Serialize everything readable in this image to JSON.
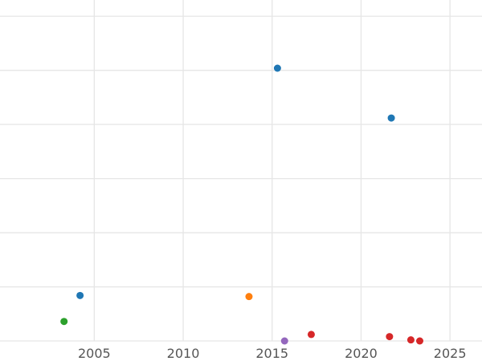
{
  "chart_data": {
    "type": "scatter",
    "title": "",
    "xlabel": "",
    "ylabel": "",
    "xlim": [
      1999.7,
      2026.8
    ],
    "ylim": [
      0,
      31.5
    ],
    "grid": true,
    "x_ticks": [
      2005,
      2010,
      2015,
      2020,
      2025
    ],
    "x_tick_labels": [
      "2005",
      "2010",
      "2015",
      "2020",
      "2025"
    ],
    "y_gridlines": [
      0,
      5,
      10,
      15,
      20,
      25,
      30
    ],
    "series": [
      {
        "color": "#1f77b4",
        "points": [
          {
            "x": 2004.2,
            "y": 4.2
          },
          {
            "x": 2015.3,
            "y": 25.2
          },
          {
            "x": 2021.7,
            "y": 20.6
          }
        ]
      },
      {
        "color": "#ff7f0e",
        "points": [
          {
            "x": 2013.7,
            "y": 4.1
          }
        ]
      },
      {
        "color": "#2ca02c",
        "points": [
          {
            "x": 2003.3,
            "y": 1.8
          }
        ]
      },
      {
        "color": "#d62728",
        "points": [
          {
            "x": 2017.2,
            "y": 0.6
          },
          {
            "x": 2021.6,
            "y": 0.4
          },
          {
            "x": 2022.8,
            "y": 0.1
          },
          {
            "x": 2023.3,
            "y": 0.0
          }
        ]
      },
      {
        "color": "#9467bd",
        "points": [
          {
            "x": 2015.7,
            "y": 0.0
          }
        ]
      }
    ]
  }
}
